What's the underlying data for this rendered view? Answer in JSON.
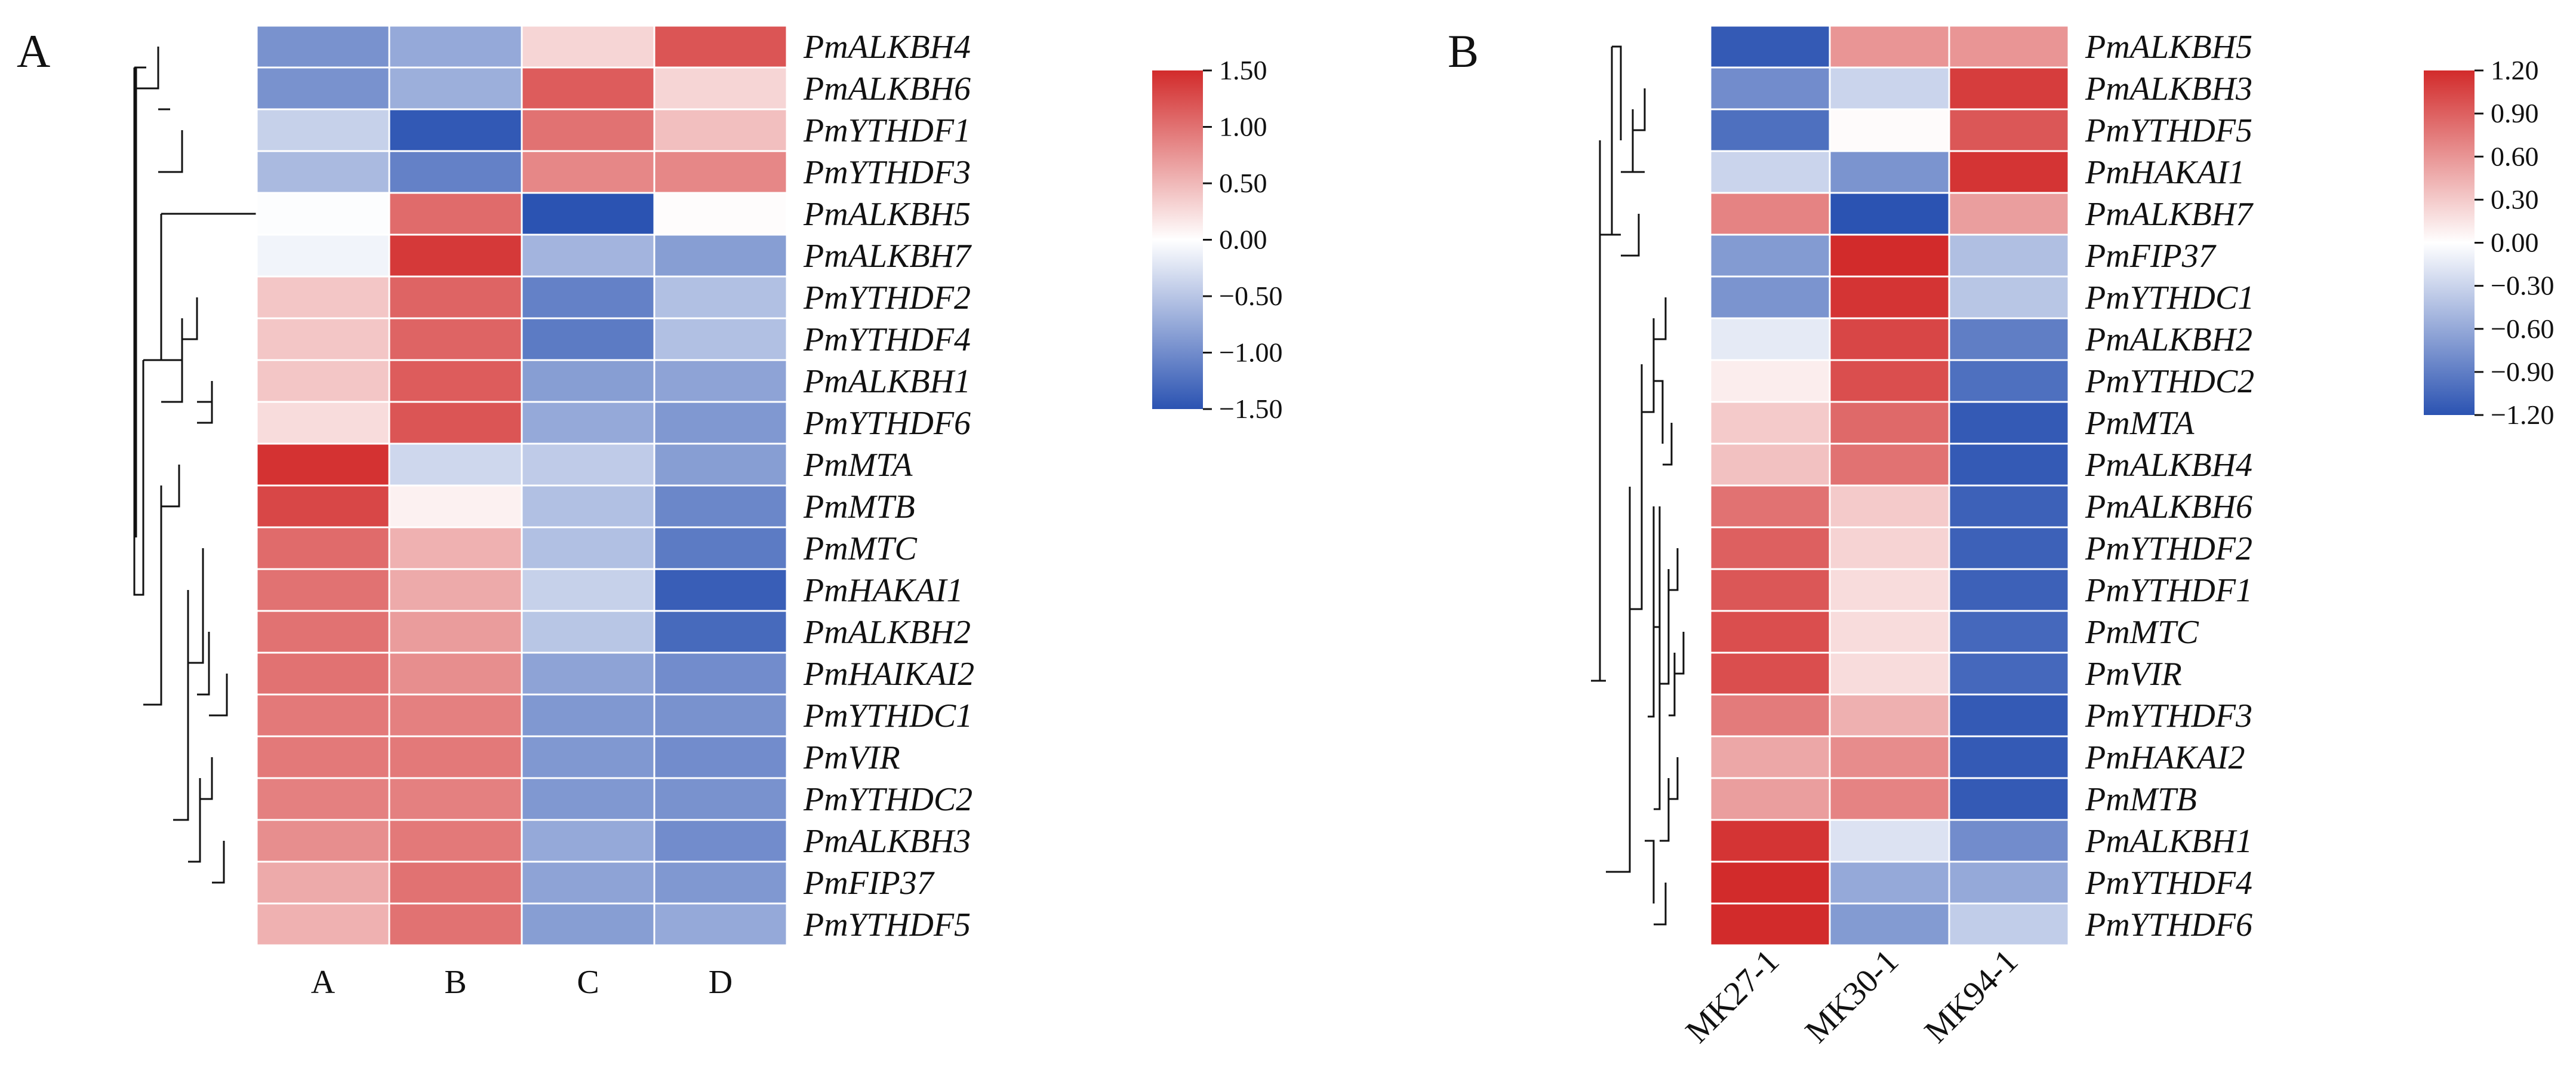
{
  "chart_data": [
    {
      "type": "heatmap",
      "panel": "A",
      "columns": [
        "A",
        "B",
        "C",
        "D"
      ],
      "rows": [
        "PmALKBH4",
        "PmALKBH6",
        "PmYTHDF1",
        "PmYTHDF3",
        "PmALKBH5",
        "PmALKBH7",
        "PmYTHDF2",
        "PmYTHDF4",
        "PmALKBH1",
        "PmYTHDF6",
        "PmMTA",
        "PmMTB",
        "PmMTC",
        "PmHAKAI1",
        "PmALKBH2",
        "PmHAIKAI2",
        "PmYTHDC1",
        "PmVIR",
        "PmYTHDC2",
        "PmALKBH3",
        "PmFIP37",
        "PmYTHDF5"
      ],
      "values": [
        [
          -0.95,
          -0.75,
          0.3,
          1.2
        ],
        [
          -0.95,
          -0.7,
          1.15,
          0.3
        ],
        [
          -0.4,
          -1.45,
          1.0,
          0.45
        ],
        [
          -0.6,
          -1.1,
          0.85,
          0.85
        ],
        [
          -0.02,
          1.05,
          -1.5,
          0.02
        ],
        [
          -0.1,
          1.4,
          -0.65,
          -0.85
        ],
        [
          0.4,
          1.1,
          -1.1,
          -0.55
        ],
        [
          0.4,
          1.1,
          -1.15,
          -0.55
        ],
        [
          0.4,
          1.15,
          -0.85,
          -0.8
        ],
        [
          0.25,
          1.2,
          -0.75,
          -0.9
        ],
        [
          1.45,
          -0.35,
          -0.45,
          -0.85
        ],
        [
          1.3,
          0.1,
          -0.55,
          -1.05
        ],
        [
          1.05,
          0.55,
          -0.55,
          -1.15
        ],
        [
          1.0,
          0.6,
          -0.4,
          -1.4
        ],
        [
          1.0,
          0.7,
          -0.5,
          -1.3
        ],
        [
          1.0,
          0.8,
          -0.8,
          -1.0
        ],
        [
          0.95,
          0.9,
          -0.9,
          -0.95
        ],
        [
          0.95,
          0.95,
          -0.9,
          -1.0
        ],
        [
          0.9,
          0.9,
          -0.9,
          -0.95
        ],
        [
          0.8,
          0.95,
          -0.75,
          -1.0
        ],
        [
          0.6,
          1.0,
          -0.8,
          -0.9
        ],
        [
          0.55,
          1.0,
          -0.85,
          -0.75
        ]
      ],
      "colorbar": {
        "min": -1.5,
        "max": 1.5,
        "ticks": [
          "1.50",
          "1.00",
          "0.50",
          "0.00",
          "−0.50",
          "−1.00",
          "−1.50"
        ]
      },
      "colors": {
        "low": "#2b53b2",
        "mid": "#ffffff",
        "high": "#d22b2b"
      }
    },
    {
      "type": "heatmap",
      "panel": "B",
      "columns": [
        "MK27-1",
        "MK30-1",
        "MK94-1"
      ],
      "rows": [
        "PmALKBH5",
        "PmALKBH3",
        "PmYTHDF5",
        "PmHAKAI1",
        "PmALKBH7",
        "PmFIP37",
        "PmYTHDC1",
        "PmALKBH2",
        "PmYTHDC2",
        "PmMTA",
        "PmALKBH4",
        "PmALKBH6",
        "PmYTHDF2",
        "PmYTHDF1",
        "PmMTC",
        "PmVIR",
        "PmYTHDF3",
        "PmHAKAI2",
        "PmMTB",
        "PmALKBH1",
        "PmYTHDF4",
        "PmYTHDF6"
      ],
      "values": [
        [
          -1.15,
          0.6,
          0.6
        ],
        [
          -0.8,
          -0.3,
          1.1
        ],
        [
          -1.0,
          0.02,
          0.95
        ],
        [
          -0.3,
          -0.75,
          1.15
        ],
        [
          0.7,
          -1.2,
          0.55
        ],
        [
          -0.7,
          1.2,
          -0.45
        ],
        [
          -0.75,
          1.15,
          -0.4
        ],
        [
          -0.15,
          1.05,
          -0.9
        ],
        [
          0.1,
          1.0,
          -1.0
        ],
        [
          0.3,
          0.85,
          -1.15
        ],
        [
          0.35,
          0.8,
          -1.15
        ],
        [
          0.8,
          0.3,
          -1.1
        ],
        [
          0.9,
          0.25,
          -1.1
        ],
        [
          0.95,
          0.2,
          -1.1
        ],
        [
          1.0,
          0.2,
          -1.05
        ],
        [
          1.0,
          0.2,
          -1.05
        ],
        [
          0.75,
          0.45,
          -1.15
        ],
        [
          0.5,
          0.65,
          -1.15
        ],
        [
          0.55,
          0.7,
          -1.15
        ],
        [
          1.15,
          -0.2,
          -0.8
        ],
        [
          1.2,
          -0.6,
          -0.6
        ],
        [
          1.2,
          -0.7,
          -0.35
        ]
      ],
      "colorbar": {
        "min": -1.2,
        "max": 1.2,
        "ticks": [
          "1.20",
          "0.90",
          "0.60",
          "0.30",
          "0.00",
          "−0.30",
          "−0.60",
          "−0.90",
          "−1.20"
        ]
      },
      "colors": {
        "low": "#2b53b2",
        "mid": "#ffffff",
        "high": "#d22b2b"
      }
    }
  ]
}
